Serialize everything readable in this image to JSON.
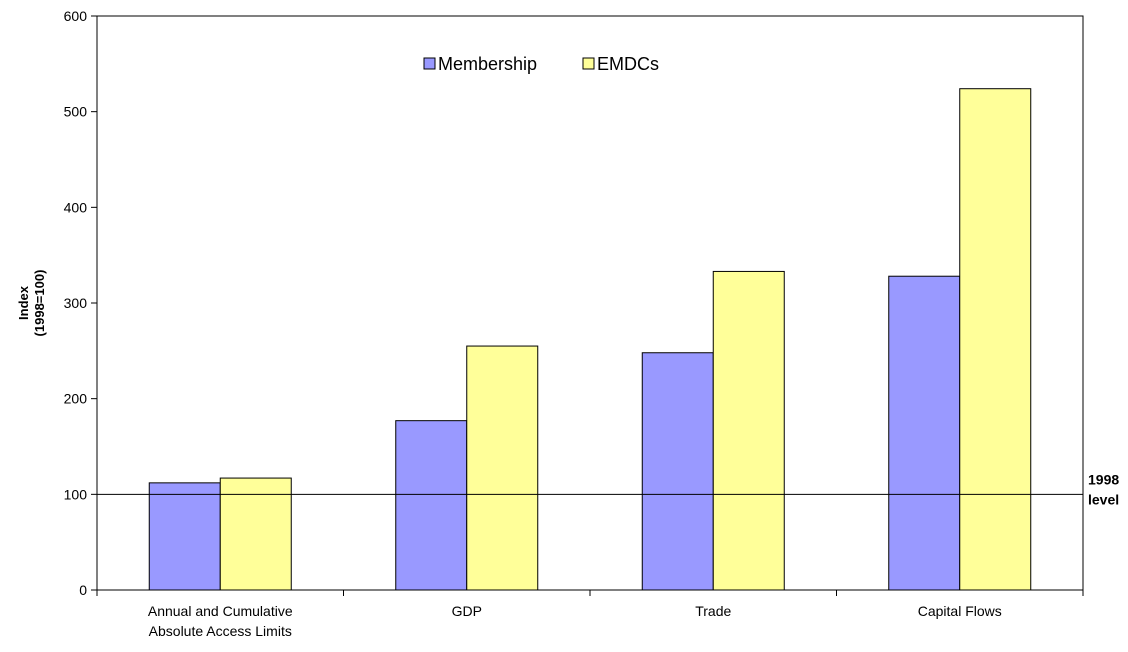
{
  "chart_data": {
    "type": "bar",
    "categories": [
      [
        "Annual and Cumulative",
        "Absolute Access Limits"
      ],
      [
        "GDP"
      ],
      [
        "Trade"
      ],
      [
        "Capital Flows"
      ]
    ],
    "series": [
      {
        "name": "Membership",
        "values": [
          112,
          177,
          248,
          328
        ],
        "color": "#9999ff"
      },
      {
        "name": "EMDCs",
        "values": [
          117,
          255,
          333,
          524
        ],
        "color": "#ffff99"
      }
    ],
    "ylabel": [
      "Index",
      "(1998=100)"
    ],
    "ylim": [
      0,
      600
    ],
    "yticks": [
      0,
      100,
      200,
      300,
      400,
      500,
      600
    ],
    "reference_line": {
      "value": 100,
      "label": [
        "1998",
        "level"
      ]
    },
    "legend_position": "top-center",
    "grid": false,
    "bar_edge_color": "#000000"
  }
}
